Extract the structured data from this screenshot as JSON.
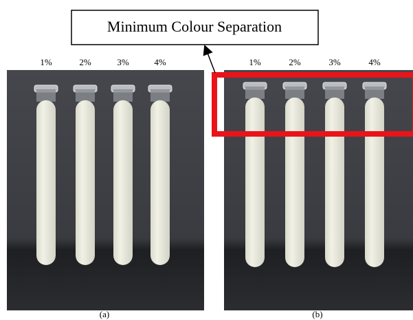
{
  "callout": "Minimum Colour Separation",
  "panels": [
    {
      "labels": [
        "1%",
        "2%",
        "3%",
        "4%"
      ],
      "caption": "(a)"
    },
    {
      "labels": [
        "1%",
        "2%",
        "3%",
        "4%"
      ],
      "caption": "(b)"
    }
  ]
}
